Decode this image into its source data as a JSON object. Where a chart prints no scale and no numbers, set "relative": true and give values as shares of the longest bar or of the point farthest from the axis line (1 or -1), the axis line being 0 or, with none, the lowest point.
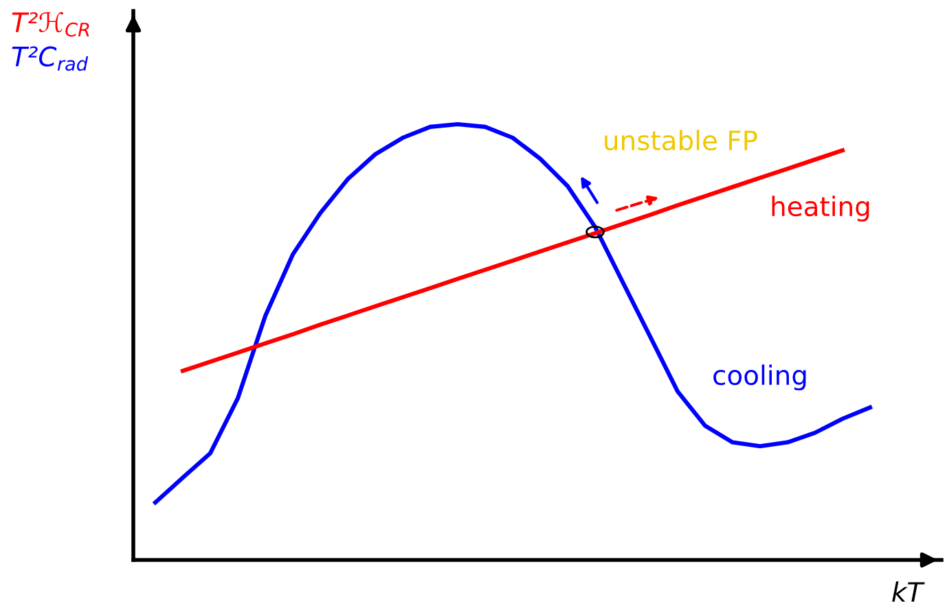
{
  "chart_data": {
    "type": "line",
    "relative": true,
    "legend": false,
    "grid": false,
    "ylabel": "T²ℋ$_{CR}$",
    "xlabel": "kT",
    "categories": [
      null,
      null,
      null,
      null,
      null,
      null,
      null,
      null,
      null,
      null,
      null,
      null,
      null,
      null,
      null,
      null,
      null,
      null,
      null,
      null,
      null,
      null,
      null,
      null,
      null,
      null,
      null
    ],
    "series": [
      {
        "name": "cooling",
        "color": "#0000ff",
        "values": [
          0.132,
          0.189,
          0.245,
          0.371,
          0.56,
          0.701,
          0.796,
          0.874,
          0.931,
          0.969,
          0.994,
          1.0,
          0.994,
          0.969,
          0.921,
          0.858,
          0.764,
          0.638,
          0.513,
          0.387,
          0.308,
          0.27,
          0.261,
          0.27,
          0.292,
          0.324,
          0.35
        ]
      },
      {
        "name": "heating",
        "color": "#ff0000",
        "values": [
          null,
          0.434,
          0.455,
          0.476,
          0.497,
          0.518,
          0.54,
          0.561,
          0.582,
          0.603,
          0.624,
          0.645,
          0.666,
          0.687,
          0.708,
          0.729,
          0.75,
          0.771,
          0.792,
          0.814,
          0.835,
          0.856,
          0.877,
          0.898,
          0.919,
          0.94,
          null
        ]
      }
    ],
    "annotations": [
      "T²C$_{rad}$",
      "unstable FP"
    ]
  }
}
